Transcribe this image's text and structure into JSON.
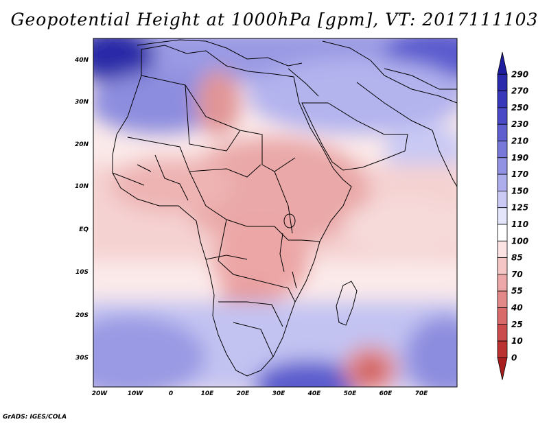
{
  "title": "Geopotential Height at 1000hPa [gpm], VT: 2017111103",
  "credit": "GrADS: IGES/COLA",
  "axes": {
    "lat_labels": [
      "40N",
      "30N",
      "20N",
      "10N",
      "EQ",
      "10S",
      "20S",
      "30S"
    ],
    "lon_labels": [
      "20W",
      "10W",
      "0",
      "10E",
      "20E",
      "30E",
      "40E",
      "50E",
      "60E",
      "70E"
    ]
  },
  "colorbar": {
    "levels": [
      "290",
      "270",
      "250",
      "230",
      "210",
      "190",
      "170",
      "150",
      "125",
      "110",
      "100",
      "85",
      "70",
      "55",
      "40",
      "25",
      "10",
      "0"
    ],
    "colors": [
      "#1d1d9e",
      "#2a2aad",
      "#3838bb",
      "#4a4ac6",
      "#5f5fd0",
      "#7878da",
      "#9292e3",
      "#adadec",
      "#cacaf4",
      "#e4e4fa",
      "#ffffff",
      "#fbe3e3",
      "#f4c6c6",
      "#eca8a8",
      "#e38888",
      "#d86a6a",
      "#cb4c4c",
      "#bb3232",
      "#a81d1d"
    ]
  },
  "map": {
    "region": "Africa, Middle East and western Indian Ocean",
    "variable": "Geopotential Height at 1000hPa",
    "units": "gpm"
  }
}
